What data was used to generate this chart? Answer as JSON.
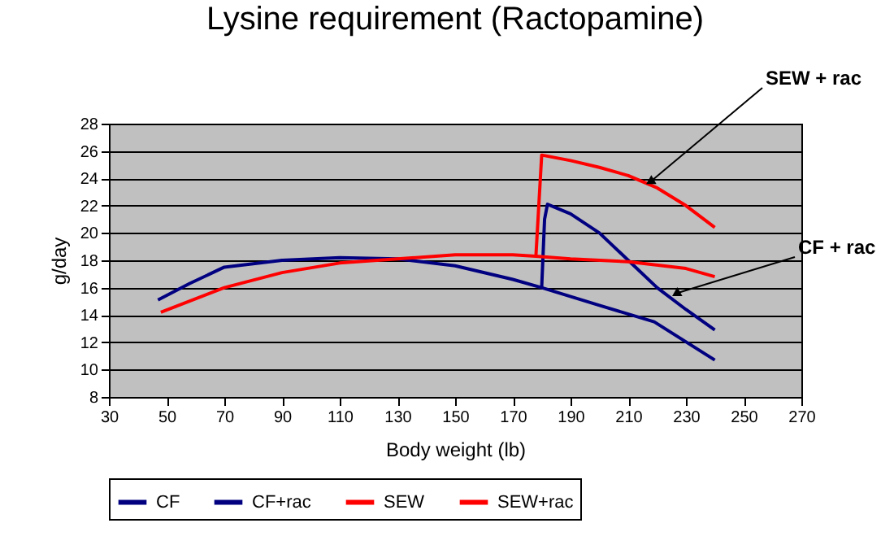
{
  "chart_data": {
    "type": "line",
    "title": "Lysine requirement (Ractopamine)",
    "xlabel": "Body weight (lb)",
    "ylabel": "g/day",
    "xlim": [
      30,
      270
    ],
    "xticks": [
      30,
      50,
      70,
      90,
      110,
      130,
      150,
      170,
      190,
      210,
      230,
      250,
      270
    ],
    "ylim": [
      8,
      28
    ],
    "yticks": [
      8,
      10,
      12,
      14,
      16,
      18,
      20,
      22,
      24,
      26,
      28
    ],
    "grid": "y",
    "legend": "bottom",
    "marker": "none",
    "line_style": "solid",
    "series": [
      {
        "name": "CF",
        "color": "#000080",
        "x": [
          47,
          58,
          70,
          90,
          110,
          130,
          150,
          170,
          180,
          200,
          219,
          240
        ],
        "values": [
          15.1,
          16.3,
          17.5,
          18.0,
          18.2,
          18.1,
          17.6,
          16.6,
          16.0,
          14.7,
          13.5,
          10.7
        ]
      },
      {
        "name": "CF+rac",
        "color": "#000080",
        "x": [
          180,
          181,
          182,
          190,
          200,
          210,
          220,
          230,
          240
        ],
        "values": [
          16.0,
          21.0,
          22.1,
          21.4,
          20.0,
          18.0,
          16.0,
          14.4,
          12.9
        ]
      },
      {
        "name": "SEW",
        "color": "#ff0000",
        "x": [
          48,
          70,
          90,
          110,
          130,
          150,
          170,
          178,
          190,
          210,
          230,
          240
        ],
        "values": [
          14.2,
          16.0,
          17.1,
          17.8,
          18.1,
          18.4,
          18.4,
          18.3,
          18.1,
          17.9,
          17.4,
          16.8
        ]
      },
      {
        "name": "SEW+rac",
        "color": "#ff0000",
        "x": [
          178,
          180,
          190,
          200,
          210,
          220,
          230,
          240
        ],
        "values": [
          18.3,
          25.7,
          25.3,
          24.8,
          24.2,
          23.3,
          22.0,
          20.4
        ]
      }
    ],
    "annotations": [
      {
        "text": "SEW + rac",
        "x": 218,
        "y": 23.8
      },
      {
        "text": "CF + rac",
        "x": 227,
        "y": 15.6
      }
    ]
  }
}
